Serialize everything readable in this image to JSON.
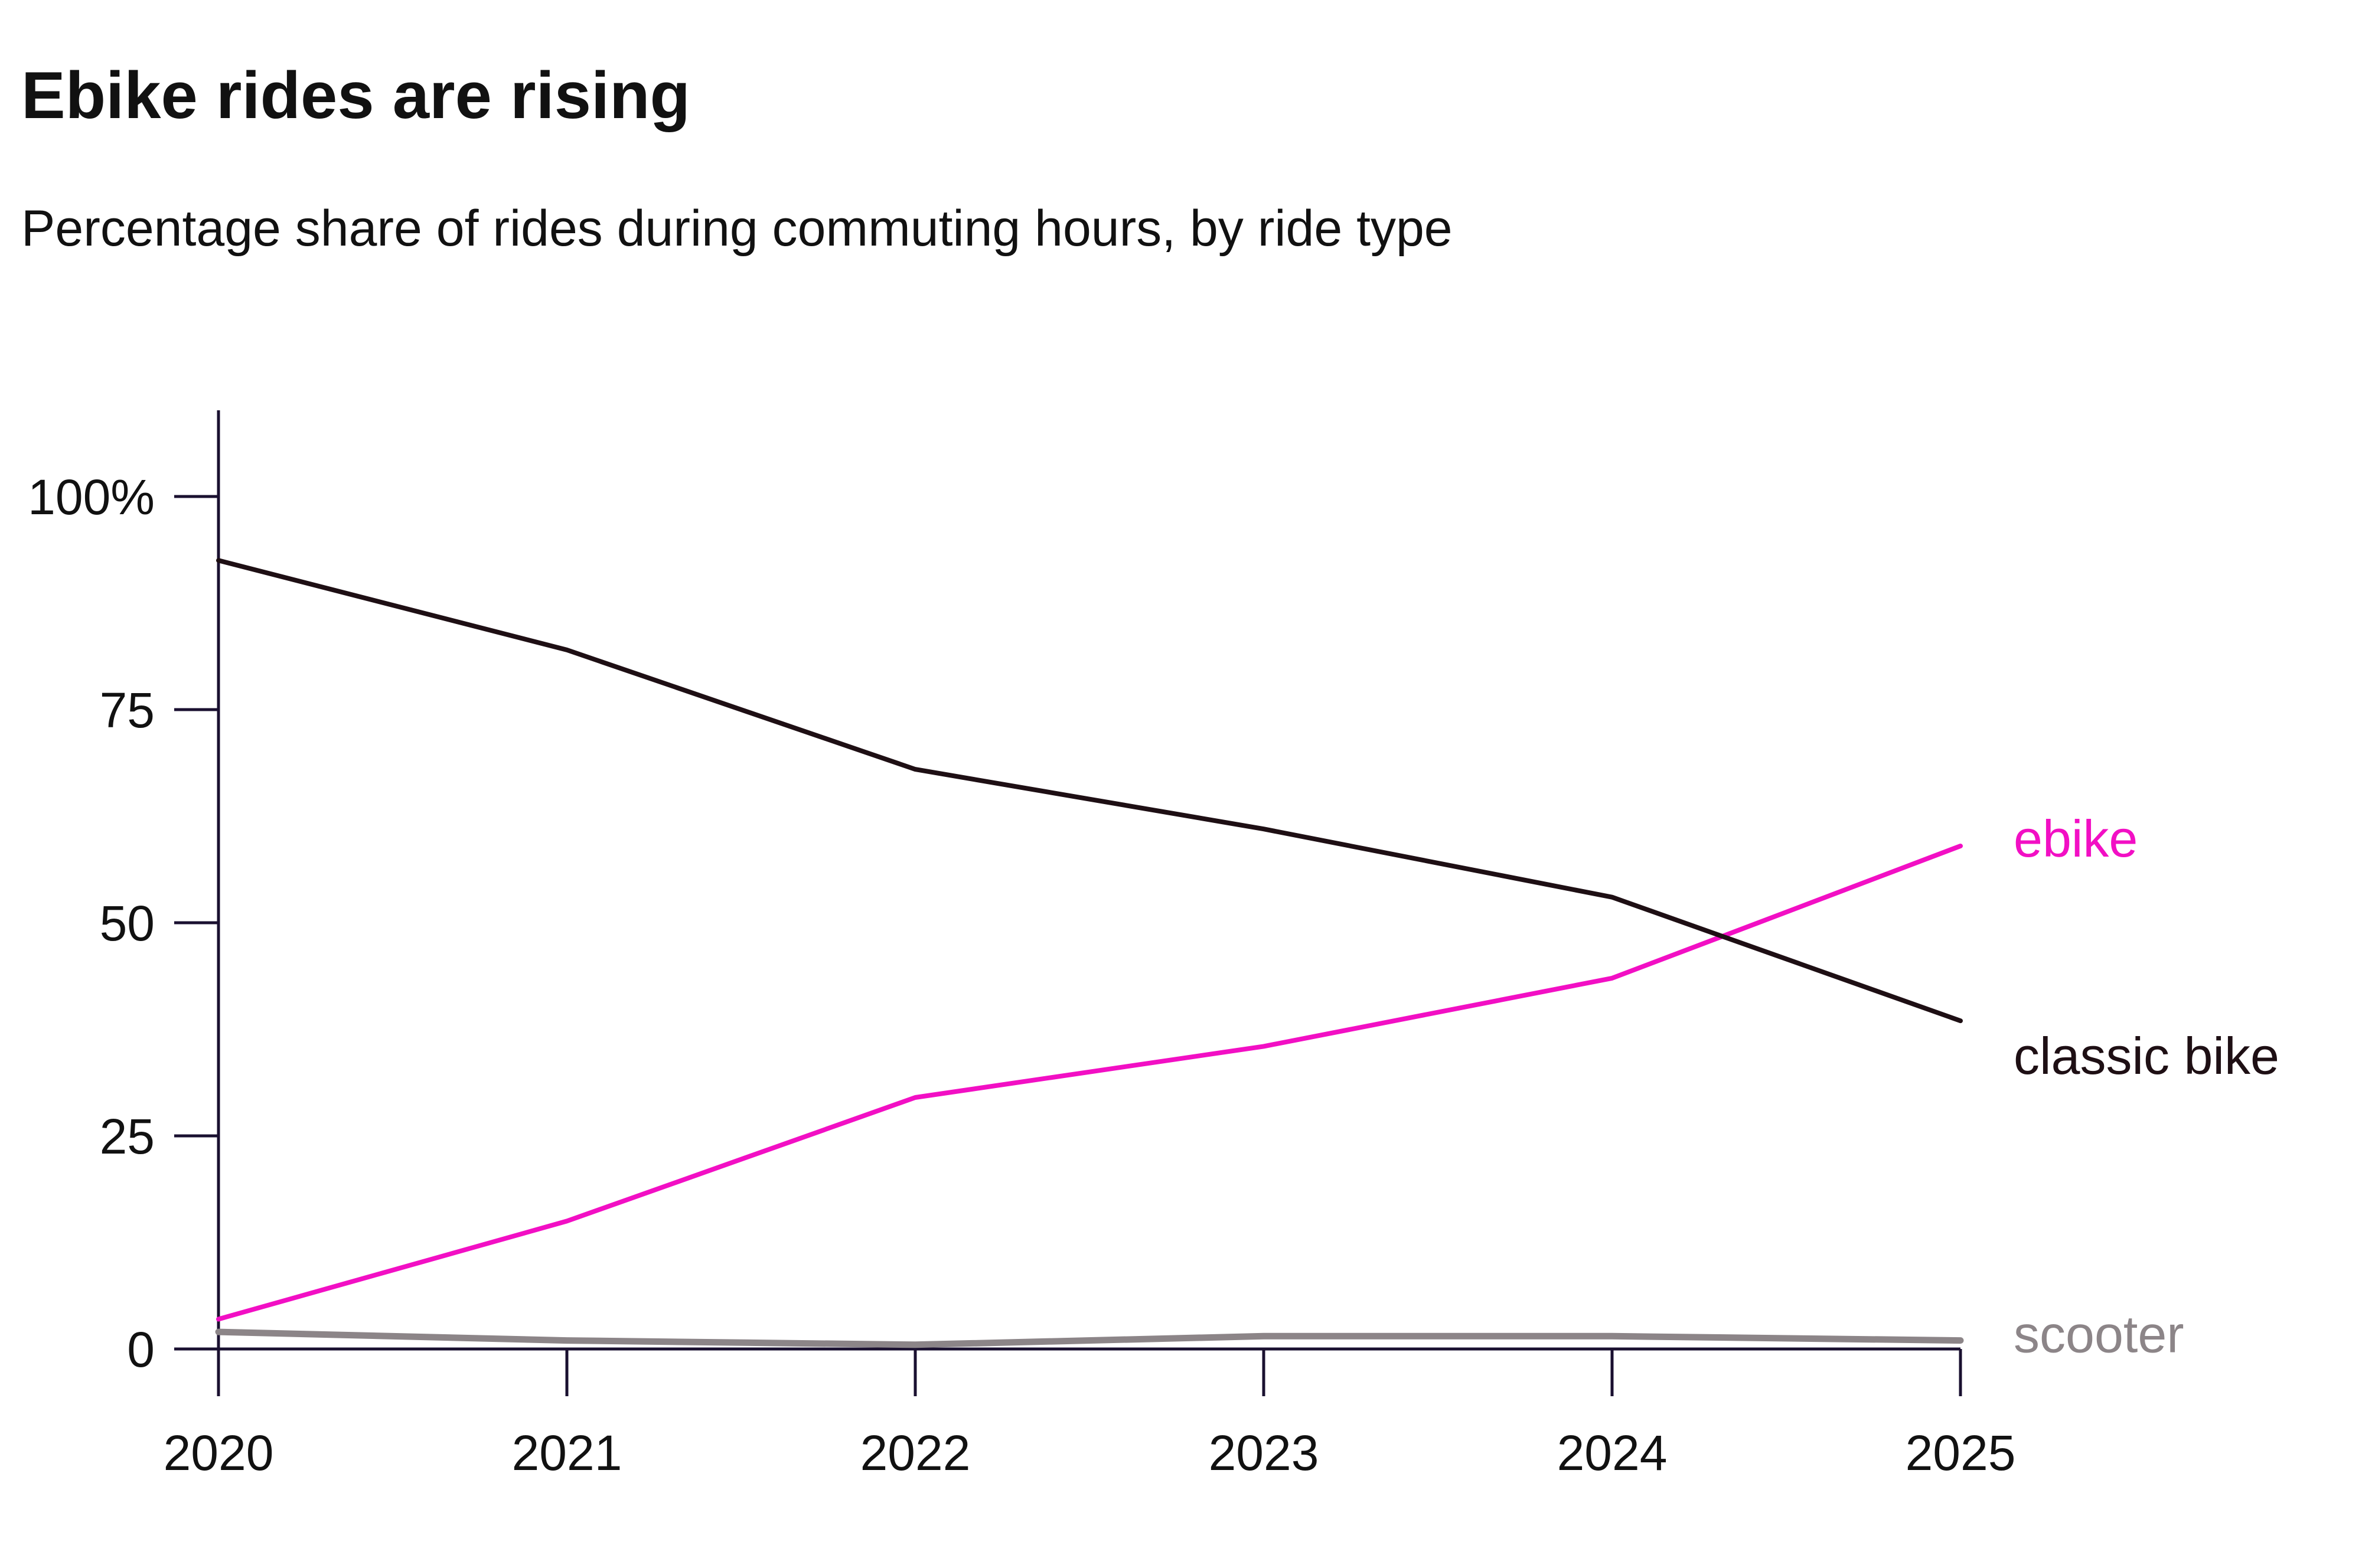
{
  "header": {
    "title": "Ebike rides are rising",
    "subtitle": "Percentage share of rides during commuting hours, by ride type"
  },
  "chart_data": {
    "type": "line",
    "title": "Ebike rides are rising",
    "subtitle": "Percentage share of rides during commuting hours, by ride type",
    "xlabel": "",
    "ylabel": "",
    "x": [
      2020,
      2021,
      2022,
      2023,
      2024,
      2025
    ],
    "x_tick_labels": [
      "2020",
      "2021",
      "2022",
      "2023",
      "2024",
      "2025"
    ],
    "ylim": [
      0,
      110
    ],
    "y_ticks": [
      0,
      25,
      50,
      75,
      100
    ],
    "y_tick_labels": [
      "0",
      "25",
      "50",
      "75",
      "100%"
    ],
    "grid": false,
    "legend": "direct labels at line ends (right)",
    "series": [
      {
        "name": "classic bike",
        "color": "#1e0f14",
        "values": [
          92.5,
          82,
          68,
          61,
          53,
          38.5
        ]
      },
      {
        "name": "ebike",
        "color": "#f20fc4",
        "values": [
          3.5,
          15,
          29.5,
          35.5,
          43.5,
          59
        ]
      },
      {
        "name": "scooter",
        "color": "#8c8588",
        "values": [
          2,
          1,
          0.5,
          1.5,
          1.5,
          1
        ]
      }
    ]
  }
}
